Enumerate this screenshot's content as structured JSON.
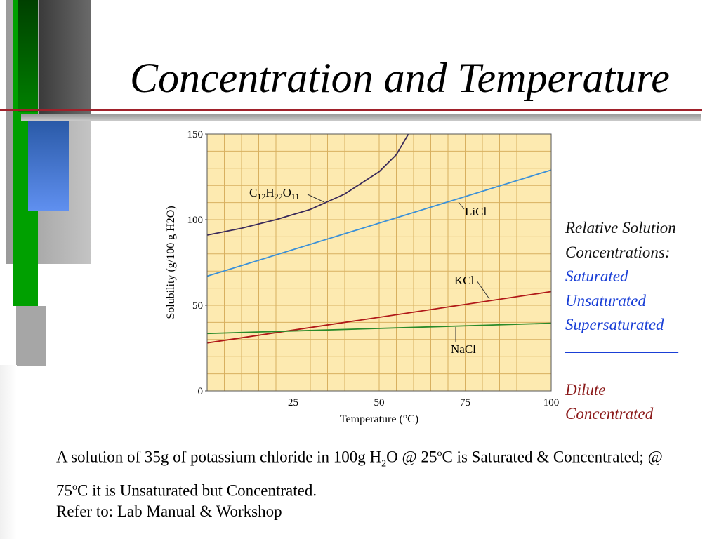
{
  "colors": {
    "plot_bg": "#fdeab0",
    "grid": "#d8b060",
    "blue_text": "#1a3fd6",
    "dark_red_text": "#8b1a1a",
    "green_bar": "#00a000",
    "dark_green_bar": "#004000"
  },
  "slide": {
    "title": "Concentration and Temperature"
  },
  "sidebar": {
    "right_lines": [
      {
        "text": "Relative Solution",
        "color": "black"
      },
      {
        "text": "Concentrations:",
        "color": "black"
      },
      {
        "text": "Saturated",
        "color": "blue"
      },
      {
        "text": "Unsaturated",
        "color": "blue"
      },
      {
        "text": "Supersaturated",
        "color": "blue"
      },
      {
        "text": "______________",
        "color": "blue"
      },
      {
        "text": "",
        "color": "black"
      },
      {
        "text": "Dilute",
        "color": "dark-red"
      },
      {
        "text": "Concentrated",
        "color": "dark-red"
      }
    ]
  },
  "footnote": {
    "p1": "A solution of 35g of potassium chloride in 100g H",
    "sub2": "2",
    "p2": "O @ 25",
    "sup_o1": "o",
    "p3": "C is Saturated & Concentrated; @ 75",
    "sup_o2": "o",
    "p4": "C it is Unsaturated but Concentrated."
  },
  "refer": "Refer to: Lab Manual & Workshop",
  "chart_data": {
    "type": "line",
    "xlabel": "Temperature (°C)",
    "ylabel": "Solubility (g/100 g H2O)",
    "xlim": [
      0,
      100
    ],
    "ylim": [
      0,
      150
    ],
    "xticks": [
      25,
      50,
      75,
      100
    ],
    "yticks": [
      0,
      50,
      100,
      150
    ],
    "grid": true,
    "series": [
      {
        "name": "C12H22O11",
        "color": "#3a2a5a",
        "x": [
          0,
          10,
          20,
          30,
          40,
          50,
          55,
          58.5
        ],
        "y": [
          91,
          95,
          100,
          106,
          115,
          128,
          138,
          150
        ]
      },
      {
        "name": "LiCl",
        "color": "#3a90d8",
        "x": [
          0,
          100
        ],
        "y": [
          67,
          129
        ]
      },
      {
        "name": "KCl",
        "color": "#b01818",
        "x": [
          0,
          100
        ],
        "y": [
          28,
          58
        ]
      },
      {
        "name": "NaCl",
        "color": "#2a8a2a",
        "x": [
          0,
          100
        ],
        "y": [
          33.5,
          39.5
        ]
      }
    ],
    "label_parts": {
      "sucrose": [
        "C",
        "12",
        "H",
        "22",
        "O",
        "11"
      ],
      "licl": "LiCl",
      "kcl": "KCl",
      "nacl": "NaCl"
    }
  }
}
